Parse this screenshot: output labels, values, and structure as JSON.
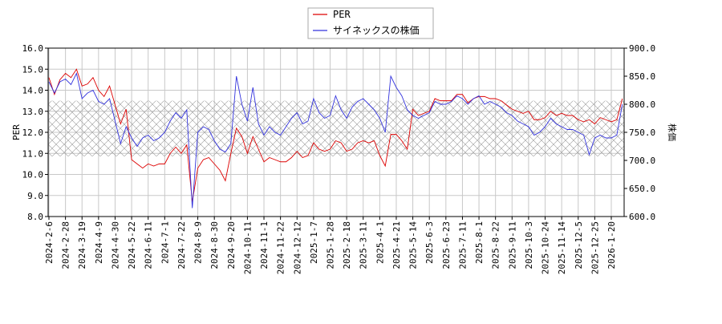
{
  "chart_data": {
    "type": "line",
    "categories": [
      "2024-2-6",
      null,
      null,
      "2024-2-28",
      null,
      null,
      "2024-3-19",
      null,
      null,
      "2024-4-9",
      null,
      null,
      "2024-4-30",
      null,
      null,
      "2024-5-22",
      null,
      null,
      "2024-6-11",
      null,
      null,
      "2024-7-1",
      null,
      null,
      "2024-7-22",
      null,
      null,
      "2024-8-9",
      null,
      null,
      "2024-8-30",
      null,
      null,
      "2024-9-20",
      null,
      null,
      "2024-10-11",
      null,
      null,
      "2024-11-1",
      null,
      null,
      "2024-11-22",
      null,
      null,
      "2024-12-12",
      null,
      null,
      "2025-1-7",
      null,
      null,
      "2025-1-28",
      null,
      null,
      "2025-2-18",
      null,
      null,
      "2025-3-11",
      null,
      null,
      "2025-4-1",
      null,
      null,
      "2025-4-21",
      null,
      null,
      "2025-5-14",
      null,
      null,
      "2025-6-3",
      null,
      null,
      "2025-6-23",
      null,
      null,
      "2025-7-11",
      null,
      null,
      "2025-8-1",
      null,
      null,
      "2025-8-22",
      null,
      null,
      "2025-9-11",
      null,
      null,
      "2025-10-3",
      null,
      null,
      "2025-10-24",
      null,
      null,
      "2025-11-14",
      null,
      null,
      "2025-12-5",
      null,
      null,
      "2025-12-25",
      null,
      null,
      "2026-1-20",
      null,
      null
    ],
    "series": [
      {
        "name": "PER",
        "color": "#dd0000",
        "values": [
          14.6,
          13.8,
          14.5,
          14.8,
          14.6,
          15.0,
          14.2,
          14.3,
          14.6,
          14.0,
          13.7,
          14.2,
          13.3,
          12.4,
          13.1,
          10.7,
          10.5,
          10.3,
          10.5,
          10.4,
          10.5,
          10.5,
          11.0,
          11.3,
          11.0,
          11.4,
          8.7,
          10.3,
          10.7,
          10.8,
          10.5,
          10.2,
          9.7,
          11.0,
          12.2,
          11.8,
          11.0,
          11.8,
          11.2,
          10.6,
          10.8,
          10.7,
          10.6,
          10.6,
          10.8,
          11.1,
          10.8,
          10.9,
          11.5,
          11.2,
          11.1,
          11.2,
          11.6,
          11.5,
          11.1,
          11.2,
          11.5,
          11.6,
          11.5,
          11.6,
          10.9,
          10.4,
          11.9,
          11.9,
          11.6,
          11.2,
          13.1,
          12.8,
          12.9,
          13.0,
          13.6,
          13.5,
          13.5,
          13.5,
          13.8,
          13.8,
          13.4,
          13.6,
          13.7,
          13.7,
          13.6,
          13.6,
          13.5,
          13.3,
          13.1,
          13.0,
          12.9,
          13.0,
          12.6,
          12.6,
          12.7,
          13.0,
          12.8,
          12.9,
          12.8,
          12.8,
          12.6,
          12.5,
          12.6,
          12.4,
          12.7,
          12.6,
          12.5,
          12.6,
          13.6
        ]
      },
      {
        "name": "サイネックスの株価",
        "color": "#3333dd",
        "axis": "y2",
        "values": [
          840,
          820,
          840,
          845,
          835,
          855,
          810,
          820,
          825,
          805,
          800,
          810,
          770,
          730,
          760,
          740,
          725,
          740,
          745,
          735,
          740,
          750,
          770,
          785,
          775,
          790,
          615,
          750,
          760,
          755,
          735,
          720,
          715,
          730,
          850,
          800,
          770,
          830,
          765,
          745,
          760,
          750,
          745,
          760,
          775,
          785,
          765,
          770,
          810,
          785,
          775,
          780,
          815,
          790,
          775,
          795,
          805,
          810,
          800,
          790,
          775,
          750,
          850,
          830,
          815,
          790,
          780,
          775,
          780,
          785,
          805,
          800,
          800,
          805,
          815,
          810,
          800,
          810,
          815,
          800,
          805,
          800,
          795,
          785,
          780,
          770,
          765,
          760,
          745,
          750,
          760,
          775,
          765,
          760,
          755,
          755,
          750,
          745,
          710,
          740,
          745,
          740,
          740,
          745,
          800
        ]
      }
    ],
    "y_label": "PER",
    "y2_label": "株価",
    "ylim": [
      8,
      16
    ],
    "yticks": [
      {
        "value": 8,
        "label": "8.0"
      },
      {
        "value": 9,
        "label": "9.0"
      },
      {
        "value": 10,
        "label": "10.0"
      },
      {
        "value": 11,
        "label": "11.0"
      },
      {
        "value": 12,
        "label": "12.0"
      },
      {
        "value": 13,
        "label": "13.0"
      },
      {
        "value": 14,
        "label": "14.0"
      },
      {
        "value": 15,
        "label": "15.0"
      },
      {
        "value": 16,
        "label": "16.0"
      }
    ],
    "y2lim": [
      600,
      900
    ],
    "y2ticks": [
      {
        "value": 600,
        "label": "600.0"
      },
      {
        "value": 650,
        "label": "650.0"
      },
      {
        "value": 700,
        "label": "700.0"
      },
      {
        "value": 750,
        "label": "750.0"
      },
      {
        "value": 800,
        "label": "800.0"
      },
      {
        "value": 850,
        "label": "850.0"
      },
      {
        "value": 900,
        "label": "900.0"
      }
    ],
    "shaded_range": [
      10.86,
      13.5
    ],
    "grid": true,
    "legend": "top"
  }
}
